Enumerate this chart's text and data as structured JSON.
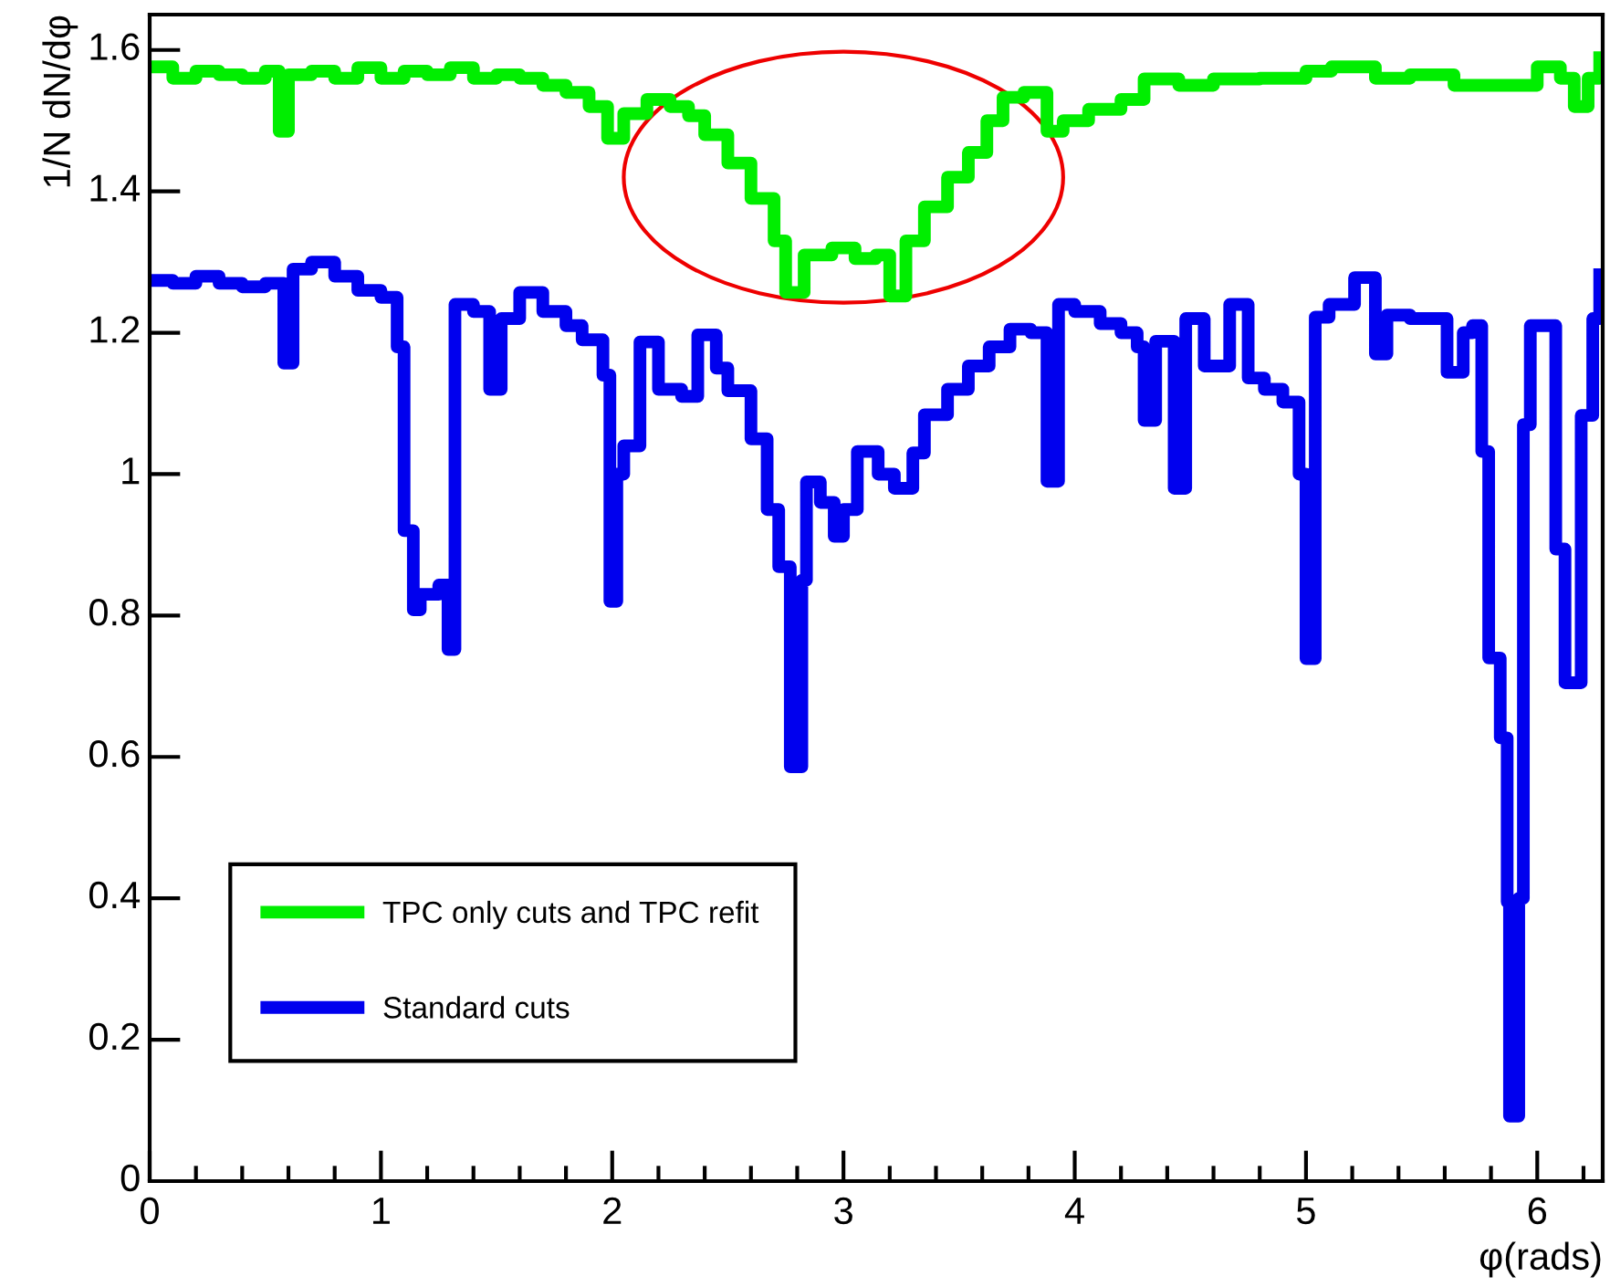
{
  "chart_data": {
    "type": "step",
    "xlabel": "φ(rads)",
    "ylabel": "1/N dN/dφ",
    "xlim": [
      0,
      6.283
    ],
    "ylim": [
      0,
      1.65
    ],
    "xticks": [
      0,
      1,
      2,
      3,
      4,
      5,
      6
    ],
    "yticks": [
      0,
      0.2,
      0.4,
      0.6,
      0.8,
      {
        "value": 1,
        "label": "1"
      },
      1.2,
      1.4,
      1.6
    ],
    "grid": false,
    "legend": "bottom left",
    "marker": "none",
    "line_style": "solid",
    "series": [
      {
        "name": "TPC only cuts and TPC refit",
        "color": "#00ee00",
        "x": [
          0,
          0.1,
          0.2,
          0.3,
          0.4,
          0.5,
          0.56,
          0.6,
          0.7,
          0.8,
          0.9,
          1.0,
          1.1,
          1.2,
          1.3,
          1.4,
          1.5,
          1.6,
          1.7,
          1.8,
          1.9,
          1.98,
          2.05,
          2.15,
          2.25,
          2.33,
          2.4,
          2.5,
          2.6,
          2.7,
          2.75,
          2.83,
          2.95,
          3.05,
          3.14,
          3.2,
          3.27,
          3.35,
          3.45,
          3.54,
          3.62,
          3.69,
          3.78,
          3.88,
          3.95,
          4.06,
          4.2,
          4.3,
          4.45,
          4.6,
          4.8,
          5.0,
          5.11,
          5.3,
          5.45,
          5.64,
          5.8,
          6.0,
          6.1,
          6.16,
          6.22,
          6.27
        ],
        "values": [
          1.576,
          1.56,
          1.57,
          1.565,
          1.56,
          1.57,
          1.485,
          1.565,
          1.57,
          1.56,
          1.575,
          1.56,
          1.57,
          1.565,
          1.575,
          1.56,
          1.565,
          1.56,
          1.55,
          1.54,
          1.52,
          1.475,
          1.51,
          1.53,
          1.52,
          1.507,
          1.48,
          1.44,
          1.39,
          1.33,
          1.257,
          1.31,
          1.32,
          1.305,
          1.31,
          1.252,
          1.33,
          1.378,
          1.42,
          1.455,
          1.5,
          1.533,
          1.54,
          1.485,
          1.5,
          1.516,
          1.53,
          1.559,
          1.55,
          1.559,
          1.56,
          1.57,
          1.576,
          1.56,
          1.565,
          1.55,
          1.55,
          1.576,
          1.56,
          1.52,
          1.56,
          1.589
        ]
      },
      {
        "name": "Standard cuts",
        "color": "#0000ee",
        "x": [
          0,
          0.1,
          0.2,
          0.3,
          0.4,
          0.5,
          0.58,
          0.62,
          0.7,
          0.8,
          0.9,
          1.0,
          1.07,
          1.1,
          1.14,
          1.17,
          1.25,
          1.29,
          1.32,
          1.4,
          1.47,
          1.52,
          1.6,
          1.7,
          1.8,
          1.87,
          1.96,
          1.99,
          2.02,
          2.05,
          2.12,
          2.2,
          2.3,
          2.37,
          2.45,
          2.5,
          2.6,
          2.67,
          2.72,
          2.77,
          2.82,
          2.84,
          2.9,
          2.96,
          3.0,
          3.06,
          3.15,
          3.22,
          3.3,
          3.35,
          3.45,
          3.54,
          3.63,
          3.72,
          3.81,
          3.88,
          3.93,
          4.0,
          4.11,
          4.2,
          4.27,
          4.3,
          4.35,
          4.43,
          4.48,
          4.56,
          4.67,
          4.75,
          4.82,
          4.9,
          4.97,
          5.0,
          5.04,
          5.1,
          5.21,
          5.3,
          5.35,
          5.45,
          5.53,
          5.61,
          5.68,
          5.72,
          5.76,
          5.79,
          5.84,
          5.87,
          5.88,
          5.92,
          5.94,
          5.97,
          6.04,
          6.08,
          6.12,
          6.19,
          6.24,
          6.27
        ],
        "values": [
          1.274,
          1.27,
          1.28,
          1.27,
          1.265,
          1.27,
          1.157,
          1.29,
          1.3,
          1.28,
          1.26,
          1.25,
          1.18,
          0.92,
          0.808,
          0.83,
          0.843,
          0.752,
          1.24,
          1.23,
          1.12,
          1.22,
          1.257,
          1.23,
          1.21,
          1.19,
          1.14,
          0.82,
          1.0,
          1.04,
          1.187,
          1.12,
          1.11,
          1.197,
          1.15,
          1.118,
          1.05,
          0.95,
          0.869,
          0.586,
          0.85,
          0.989,
          0.96,
          0.912,
          0.95,
          1.032,
          1.0,
          0.98,
          1.03,
          1.084,
          1.12,
          1.153,
          1.18,
          1.205,
          1.2,
          0.99,
          1.24,
          1.23,
          1.213,
          1.2,
          1.18,
          1.076,
          1.188,
          0.98,
          1.22,
          1.153,
          1.24,
          1.136,
          1.12,
          1.102,
          1.0,
          0.739,
          1.222,
          1.24,
          1.278,
          1.17,
          1.225,
          1.22,
          1.22,
          1.144,
          1.2,
          1.21,
          1.032,
          0.74,
          0.627,
          0.395,
          0.092,
          0.4,
          1.07,
          1.21,
          1.21,
          0.894,
          0.705,
          1.083,
          1.22,
          1.282
        ]
      }
    ]
  }
}
